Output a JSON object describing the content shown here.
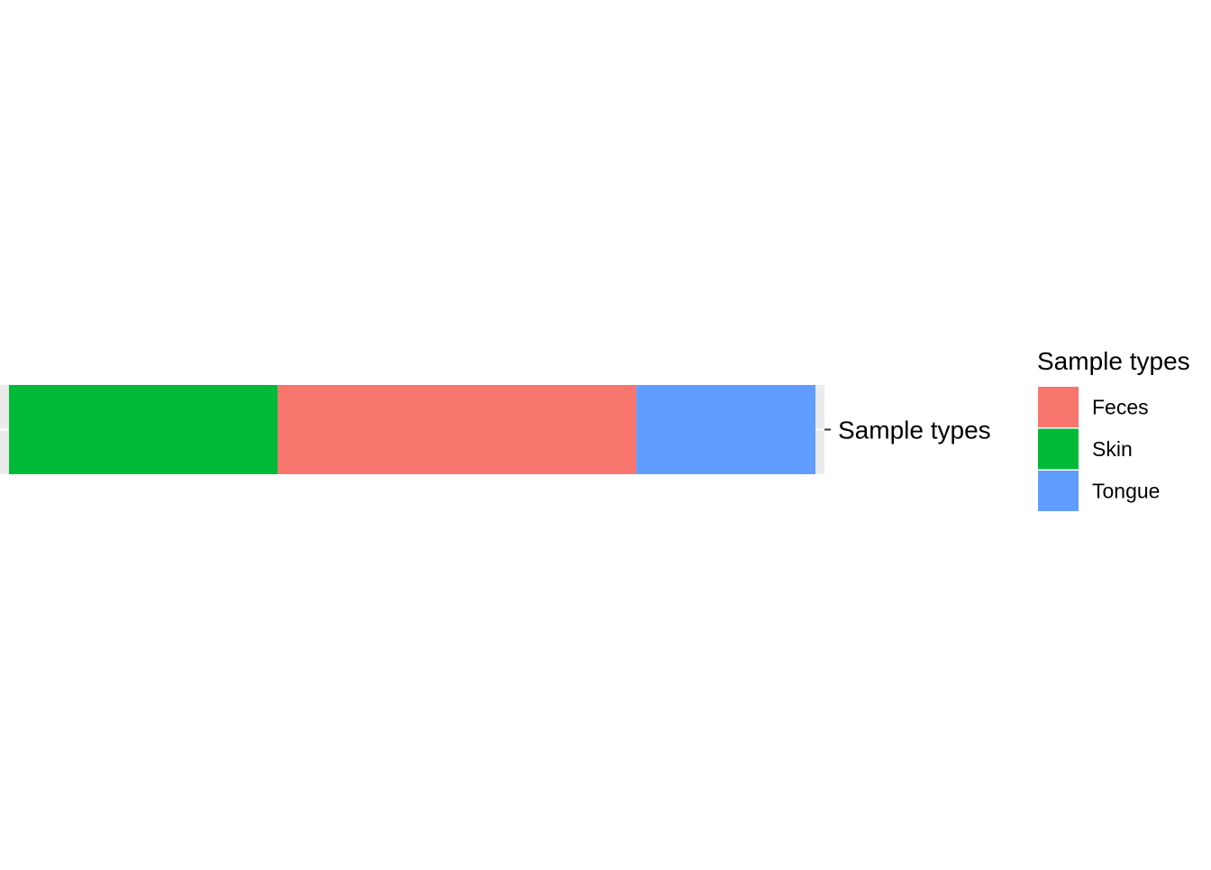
{
  "chart_data": {
    "type": "bar",
    "orientation": "horizontal",
    "stacked": true,
    "y_tick_labels": [
      "Sample types"
    ],
    "segments_order": [
      "Skin",
      "Feces",
      "Tongue"
    ],
    "values": [
      {
        "category": "Skin",
        "value": 0.3333
      },
      {
        "category": "Feces",
        "value": 0.4444
      },
      {
        "category": "Tongue",
        "value": 0.2222
      }
    ],
    "legend": {
      "title": "Sample types",
      "placement": "right",
      "entries": [
        {
          "label": "Feces",
          "color": "#F8766D"
        },
        {
          "label": "Skin",
          "color": "#00BA38"
        },
        {
          "label": "Tongue",
          "color": "#619CFF"
        }
      ]
    },
    "colors": {
      "Feces": "#F8766D",
      "Skin": "#00BA38",
      "Tongue": "#619CFF",
      "panel_background": "#EBEBEB",
      "gridline": "#FFFFFF"
    },
    "grid": true,
    "title": "",
    "xlabel": "",
    "ylabel": ""
  }
}
